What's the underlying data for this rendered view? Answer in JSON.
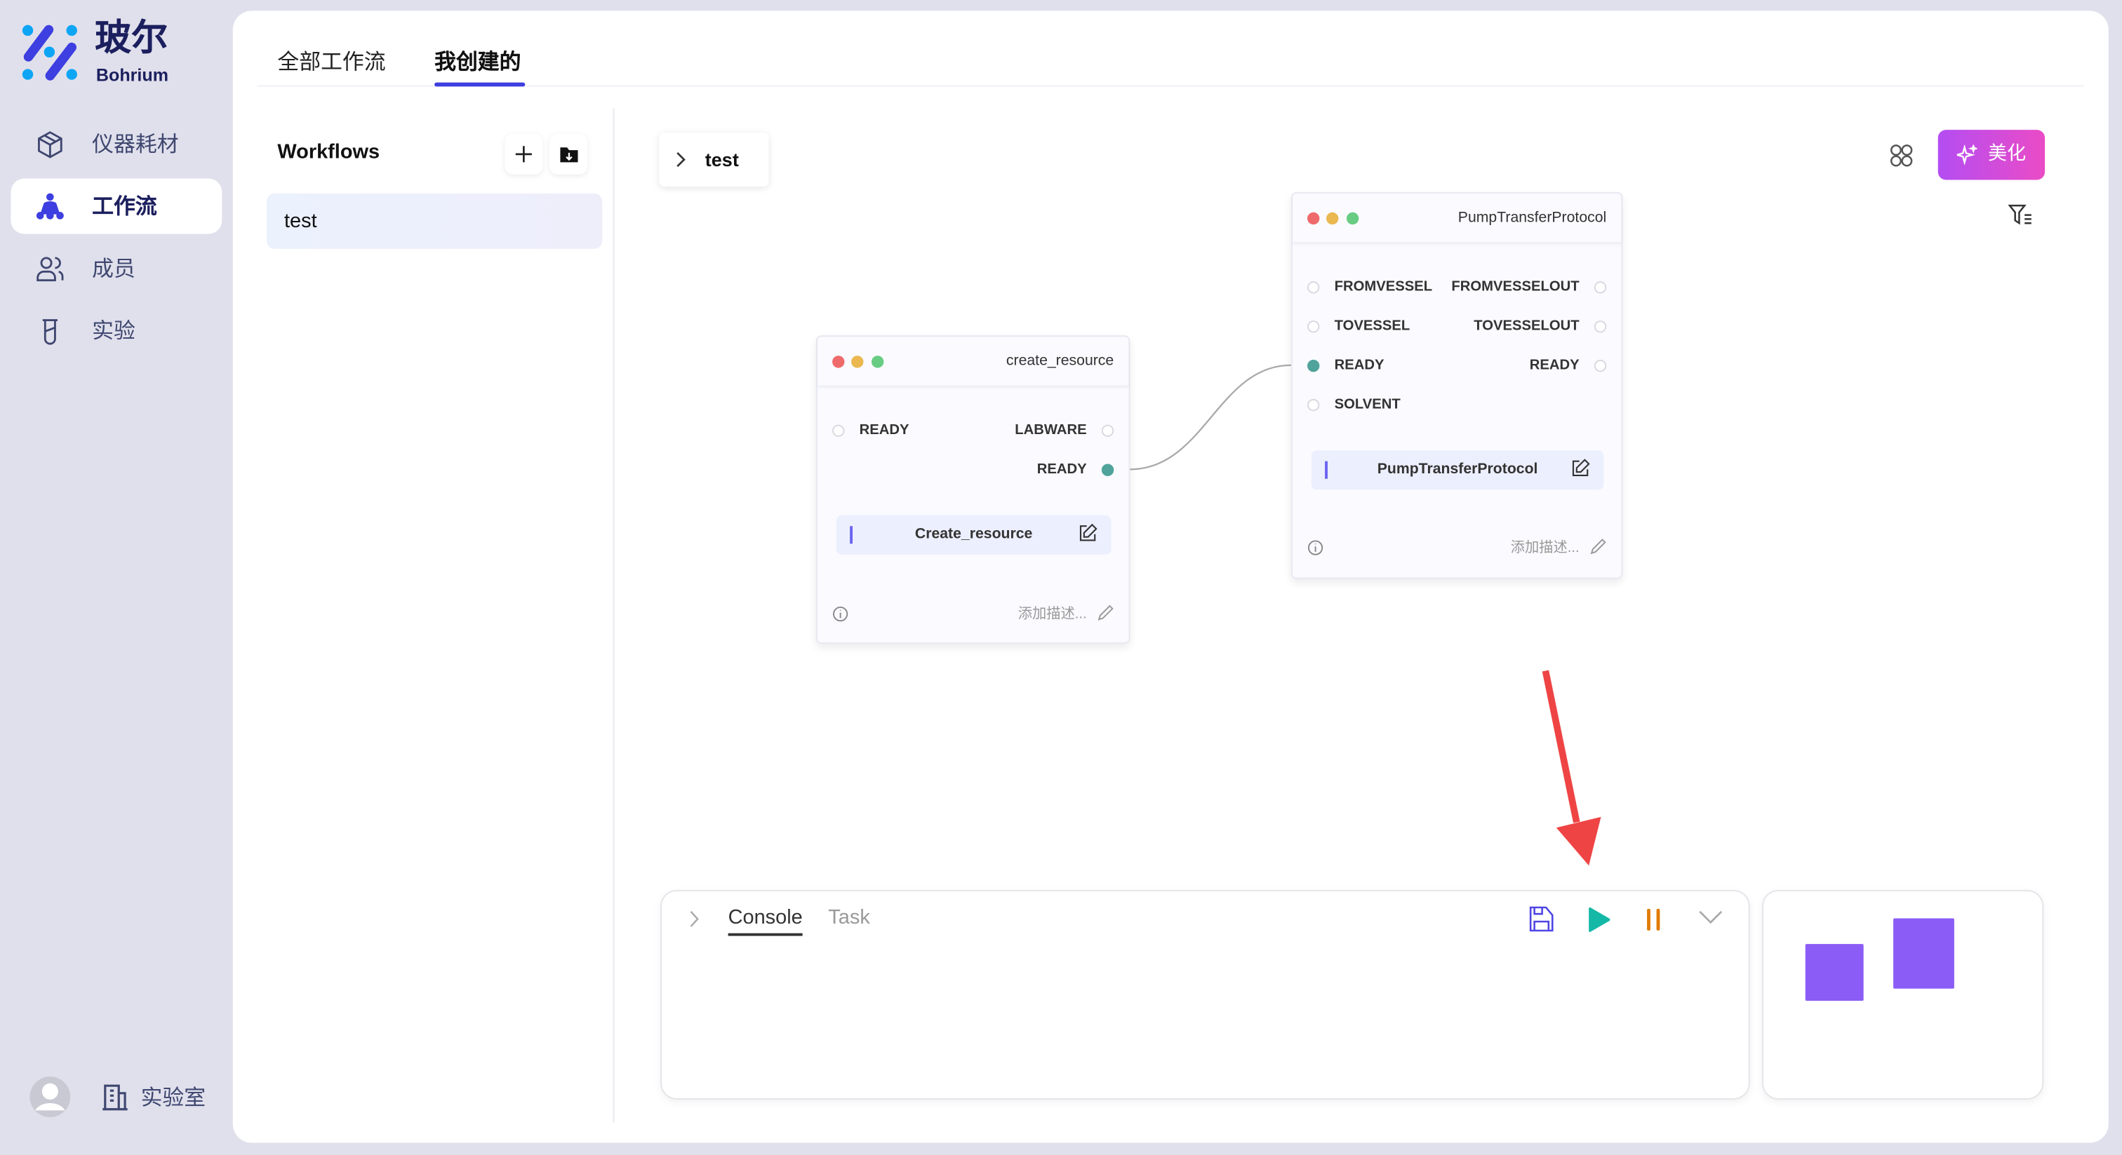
{
  "brand": {
    "name_cn": "玻尔",
    "name_en": "Bohrium"
  },
  "sidebar": {
    "items": [
      {
        "label": "仪器耗材",
        "icon": "box-icon"
      },
      {
        "label": "工作流",
        "icon": "workflow-icon",
        "active": true
      },
      {
        "label": "成员",
        "icon": "users-icon"
      },
      {
        "label": "实验",
        "icon": "test-tube-icon"
      }
    ],
    "footer": {
      "lab_label": "实验室"
    }
  },
  "tabs": [
    {
      "label": "全部工作流"
    },
    {
      "label": "我创建的",
      "active": true
    }
  ],
  "workflows": {
    "title": "Workflows",
    "items": [
      {
        "label": "test",
        "selected": true
      }
    ]
  },
  "canvas": {
    "breadcrumb": "test",
    "beautify_label": "美化",
    "nodes": [
      {
        "title": "create_resource",
        "inputs": [
          "READY"
        ],
        "outputs": [
          "LABWARE",
          "READY"
        ],
        "function": "Create_resource",
        "description_placeholder": "添加描述..."
      },
      {
        "title": "PumpTransferProtocol",
        "inputs": [
          "FROMVESSEL",
          "TOVESSEL",
          "READY",
          "SOLVENT"
        ],
        "outputs": [
          "FROMVESSELOUT",
          "TOVESSELOUT",
          "READY"
        ],
        "function": "PumpTransferProtocol",
        "description_placeholder": "添加描述..."
      }
    ]
  },
  "console": {
    "tabs": [
      {
        "label": "Console",
        "active": true
      },
      {
        "label": "Task"
      }
    ]
  },
  "colors": {
    "accent": "#3d3fe0",
    "connected_port": "#4fa39b",
    "run": "#14b8a6",
    "pause": "#e07b00",
    "minimap_node": "#8b5cf6",
    "arrow": "#ef4444"
  }
}
